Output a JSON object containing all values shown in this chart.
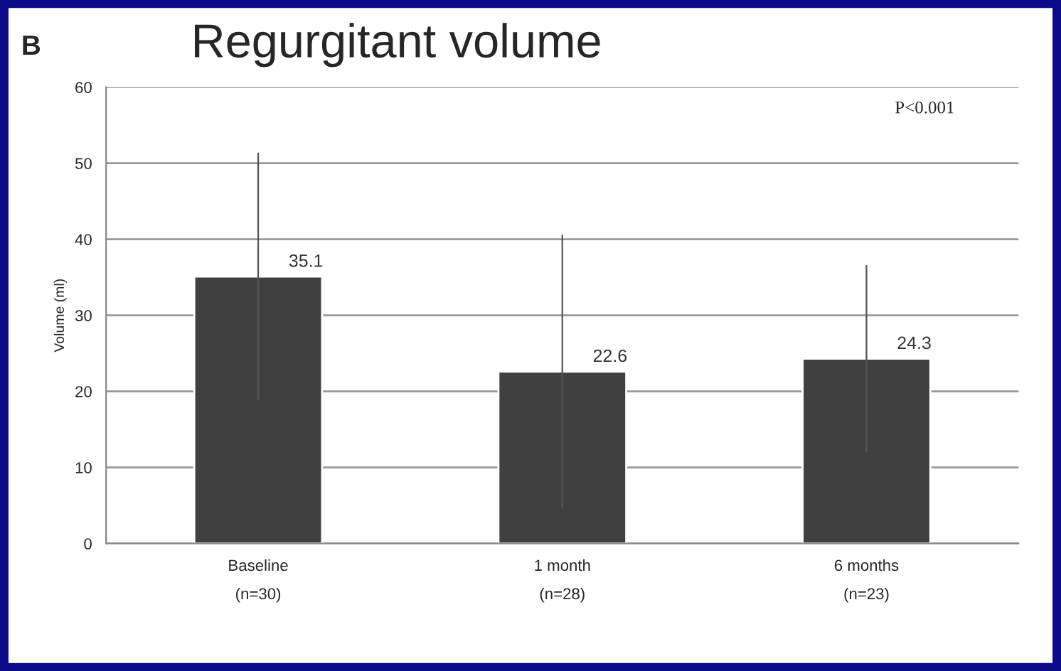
{
  "chart_data": {
    "type": "bar",
    "title": "Regurgitant volume",
    "ylabel": "Volume (ml)",
    "categories": [
      "Baseline\n(n=30)",
      "1 month\n(n=28)",
      "6 months\n(n=23)"
    ],
    "values": [
      35.1,
      22.6,
      24.3
    ],
    "errors": [
      16.3,
      18,
      12.3
    ],
    "color": "#404040",
    "data_labels": true,
    "ylim": [
      0,
      60
    ],
    "yticks": [
      0,
      10,
      20,
      30,
      40,
      50,
      60
    ],
    "grid": "y",
    "annotations": [
      "B",
      "P<0.001"
    ]
  }
}
